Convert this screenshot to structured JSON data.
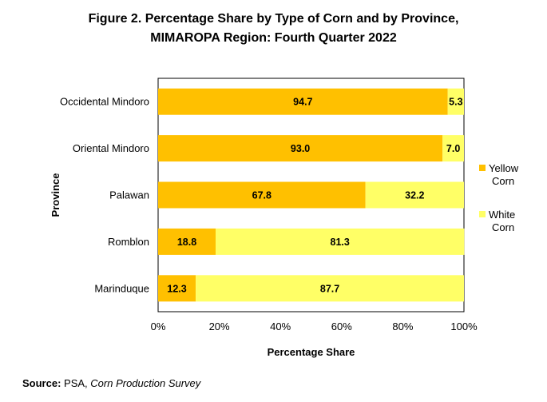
{
  "title_line1": "Figure 2. Percentage Share by Type of Corn and by Province,",
  "title_line2": "MIMAROPA Region: Fourth Quarter 2022",
  "source": {
    "label": "Source:",
    "agency": "PSA,",
    "survey": "Corn Production Survey"
  },
  "chart_data": {
    "type": "bar",
    "orientation": "horizontal",
    "stacked": true,
    "categories": [
      "Occidental Mindoro",
      "Oriental Mindoro",
      "Palawan",
      "Romblon",
      "Marinduque"
    ],
    "series": [
      {
        "name": "Yellow Corn",
        "color": "#FFC000",
        "values": [
          94.7,
          93.0,
          67.8,
          18.8,
          12.3
        ]
      },
      {
        "name": "White Corn",
        "color": "#FFFF66",
        "values": [
          5.3,
          7.0,
          32.2,
          81.3,
          87.7
        ]
      }
    ],
    "value_labels": [
      [
        "94.7",
        "93.0",
        "67.8",
        "18.8",
        "12.3"
      ],
      [
        "5.3",
        "7.0",
        "32.2",
        "81.3",
        "87.7"
      ]
    ],
    "xlabel": "Percentage Share",
    "ylabel": "Province",
    "xlim": [
      0,
      100
    ],
    "xticks": [
      "0%",
      "20%",
      "40%",
      "60%",
      "80%",
      "100%"
    ],
    "grid": false,
    "legend_position": "right"
  }
}
